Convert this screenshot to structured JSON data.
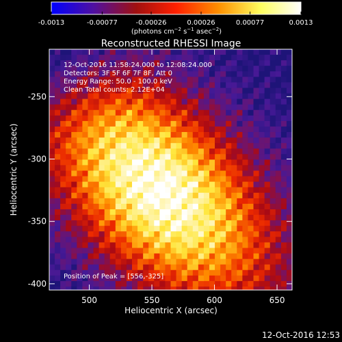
{
  "colorbar": {
    "ticks": [
      "-0.0013",
      "-0.00077",
      "-0.00026",
      "0.00026",
      "0.00077",
      "0.0013"
    ],
    "tick_values": [
      -0.0013,
      -0.00077,
      -0.00026,
      0.00026,
      0.00077,
      0.0013
    ],
    "range": [
      -0.0013,
      0.0013
    ],
    "units_prefix": "(photons cm",
    "units_exp1": "−2",
    "units_mid": " s",
    "units_exp2": "−1",
    "units_mid2": " asec",
    "units_exp3": "−2",
    "units_suffix": ")",
    "colors": [
      "#0000ff",
      "#5010a0",
      "#a01010",
      "#ff2000",
      "#ff9000",
      "#ffff60",
      "#ffffff"
    ]
  },
  "chart_data": {
    "type": "heatmap",
    "title": "Reconstructed RHESSI Image",
    "xlabel": "Heliocentric X (arcsec)",
    "ylabel": "Heliocentric Y (arcsec)",
    "xlim": [
      468,
      662
    ],
    "ylim": [
      -405,
      -212
    ],
    "xticks": [
      500,
      550,
      600,
      650
    ],
    "yticks": [
      -250,
      -300,
      -350,
      -400
    ],
    "peak": [
      556,
      -325
    ],
    "annotations": [
      "12-Oct-2016 11:58:24.000 to 12:08:24.000",
      "Detectors: 3F 5F 6F 7F 8F, Att 0",
      "Energy Range: 50.0 - 100.0 keV",
      "Clean     Total counts: 2.12E+04"
    ],
    "peak_label": "Position of Peak = [556,-325]"
  },
  "timestamp": "12-Oct-2016 12:53"
}
